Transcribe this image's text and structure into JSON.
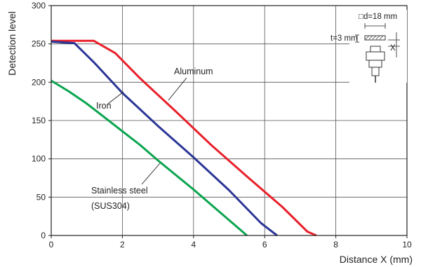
{
  "chart_data": {
    "type": "line",
    "title": "",
    "xlabel": "Distance X (mm)",
    "ylabel": "Detection level",
    "xlim": [
      0,
      10
    ],
    "ylim": [
      0,
      300
    ],
    "x_ticks": [
      "0",
      "2",
      "4",
      "6",
      "8",
      "10"
    ],
    "y_ticks": [
      "0",
      "50",
      "100",
      "150",
      "200",
      "250",
      "300"
    ],
    "grid": true,
    "series": [
      {
        "name": "Aluminum",
        "color": "#e8202a",
        "points": [
          [
            0,
            254
          ],
          [
            1.2,
            254
          ],
          [
            1.8,
            238
          ],
          [
            2.5,
            205
          ],
          [
            3.5,
            162
          ],
          [
            4.5,
            118
          ],
          [
            5.5,
            77
          ],
          [
            6.5,
            37
          ],
          [
            7.2,
            5
          ],
          [
            7.45,
            0
          ]
        ]
      },
      {
        "name": "Iron",
        "color": "#2b3596",
        "points": [
          [
            0,
            253
          ],
          [
            0.65,
            251
          ],
          [
            1.2,
            226
          ],
          [
            2.0,
            186
          ],
          [
            3.0,
            143
          ],
          [
            4.0,
            102
          ],
          [
            5.0,
            59
          ],
          [
            5.9,
            16
          ],
          [
            6.35,
            0
          ]
        ]
      },
      {
        "name": "Stainless steel",
        "subname": "(SUS304)",
        "color": "#0aa44e",
        "points": [
          [
            0,
            202
          ],
          [
            0.5,
            188
          ],
          [
            1.0,
            172
          ],
          [
            1.5,
            154
          ],
          [
            2.0,
            136
          ],
          [
            2.5,
            118
          ],
          [
            3.0,
            98
          ],
          [
            3.5,
            79
          ],
          [
            4.0,
            60
          ],
          [
            4.5,
            40
          ],
          [
            5.0,
            20
          ],
          [
            5.5,
            0
          ]
        ]
      }
    ],
    "annotations": {
      "aluminum": "Aluminum",
      "iron": "Iron",
      "stainless": "Stainless steel",
      "stainless_sub": "(SUS304)"
    },
    "inset": {
      "square_label": "□d=18 mm",
      "thickness_label": "t=3 mm",
      "distance_label": "X",
      "icon": "sensor-target-diagram-icon"
    }
  }
}
